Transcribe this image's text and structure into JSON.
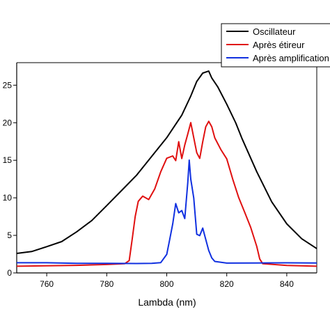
{
  "chart_data": {
    "type": "line",
    "title": "",
    "xlabel": "Lambda (nm)",
    "ylabel": "",
    "xlim": [
      750,
      850
    ],
    "ylim": [
      0,
      28
    ],
    "x_ticks": [
      760,
      780,
      800,
      820,
      840
    ],
    "y_ticks": [
      0,
      5,
      10,
      15,
      20,
      25
    ],
    "x_tick_labels": [
      "760",
      "780",
      "800",
      "820",
      "840"
    ],
    "y_tick_labels": [
      "0",
      "5",
      "10",
      "15",
      "20",
      "25"
    ],
    "grid": false,
    "legend_position": "top-right",
    "series": [
      {
        "name": "Oscillateur",
        "color": "#000000",
        "points": [
          [
            750,
            2.6
          ],
          [
            755,
            2.9
          ],
          [
            760,
            3.5
          ],
          [
            765,
            4.2
          ],
          [
            770,
            5.5
          ],
          [
            775,
            7.0
          ],
          [
            780,
            9.0
          ],
          [
            785,
            11.0
          ],
          [
            790,
            13.0
          ],
          [
            795,
            15.5
          ],
          [
            800,
            18.0
          ],
          [
            805,
            21.0
          ],
          [
            808,
            23.5
          ],
          [
            810,
            25.5
          ],
          [
            812,
            26.6
          ],
          [
            814,
            26.9
          ],
          [
            815,
            26.0
          ],
          [
            817,
            24.8
          ],
          [
            820,
            22.5
          ],
          [
            823,
            20.0
          ],
          [
            825,
            18.0
          ],
          [
            830,
            13.5
          ],
          [
            835,
            9.5
          ],
          [
            840,
            6.5
          ],
          [
            845,
            4.5
          ],
          [
            850,
            3.2
          ]
        ]
      },
      {
        "name": "Après étireur",
        "color": "#e01010",
        "points": [
          [
            750,
            0.9
          ],
          [
            770,
            1.0
          ],
          [
            780,
            1.1
          ],
          [
            786,
            1.2
          ],
          [
            787.5,
            1.6
          ],
          [
            788.5,
            4.5
          ],
          [
            789.5,
            7.5
          ],
          [
            790.5,
            9.5
          ],
          [
            792,
            10.2
          ],
          [
            794,
            9.8
          ],
          [
            796,
            11.2
          ],
          [
            798,
            13.5
          ],
          [
            800,
            15.3
          ],
          [
            802,
            15.6
          ],
          [
            803,
            15.0
          ],
          [
            804,
            17.5
          ],
          [
            805,
            15.2
          ],
          [
            806,
            17.0
          ],
          [
            807,
            18.5
          ],
          [
            808,
            20.0
          ],
          [
            809,
            18.0
          ],
          [
            810,
            16.0
          ],
          [
            811,
            15.2
          ],
          [
            812,
            17.5
          ],
          [
            813,
            19.5
          ],
          [
            814,
            20.2
          ],
          [
            815,
            19.5
          ],
          [
            816,
            18.0
          ],
          [
            818,
            16.5
          ],
          [
            820,
            15.2
          ],
          [
            822,
            12.5
          ],
          [
            824,
            10.0
          ],
          [
            826,
            8.0
          ],
          [
            828,
            6.0
          ],
          [
            830,
            3.5
          ],
          [
            831,
            1.8
          ],
          [
            832,
            1.2
          ],
          [
            840,
            1.0
          ],
          [
            850,
            0.9
          ]
        ]
      },
      {
        "name": "Après amplification",
        "color": "#1030e0",
        "points": [
          [
            750,
            1.3
          ],
          [
            760,
            1.3
          ],
          [
            770,
            1.3
          ],
          [
            780,
            1.3
          ],
          [
            790,
            1.3
          ],
          [
            795,
            1.3
          ],
          [
            798,
            1.4
          ],
          [
            800,
            2.5
          ],
          [
            801,
            4.5
          ],
          [
            802,
            6.5
          ],
          [
            803,
            9.2
          ],
          [
            804,
            8.0
          ],
          [
            805,
            8.3
          ],
          [
            806,
            7.2
          ],
          [
            807,
            12.0
          ],
          [
            807.5,
            15.0
          ],
          [
            808,
            12.5
          ],
          [
            809,
            10.0
          ],
          [
            810,
            5.2
          ],
          [
            811,
            5.0
          ],
          [
            812,
            6.0
          ],
          [
            813,
            4.5
          ],
          [
            814,
            3.0
          ],
          [
            815,
            2.0
          ],
          [
            816,
            1.5
          ],
          [
            820,
            1.3
          ],
          [
            830,
            1.3
          ],
          [
            840,
            1.3
          ],
          [
            850,
            1.3
          ]
        ]
      }
    ]
  }
}
